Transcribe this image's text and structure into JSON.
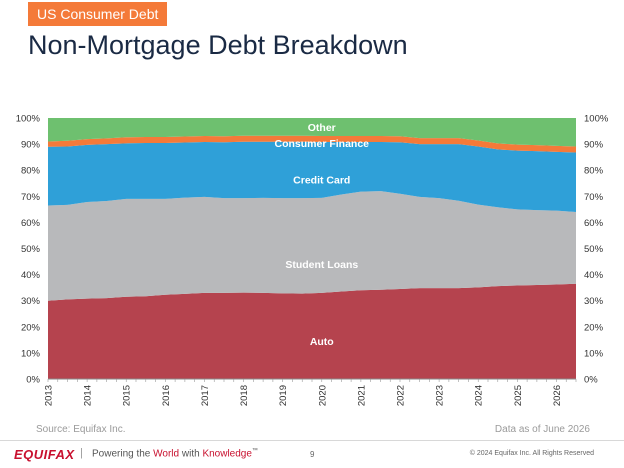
{
  "header": {
    "section_tag": "US Consumer Debt",
    "title": "Non-Mortgage Debt Breakdown"
  },
  "footer": {
    "source": "Source: Equifax Inc.",
    "as_of": "Data as of June 2026",
    "logo": "EQUIFAX",
    "separator": "|",
    "tagline_1": "Powering the ",
    "tagline_2": "World",
    "tagline_3": " with ",
    "tagline_4": "Knowledge",
    "tagline_tm": "™",
    "page_number": "9",
    "copyright": "© 2024 Equifax Inc. All Rights Reserved"
  },
  "chart_data": {
    "type": "area",
    "stacked": true,
    "y_axis_left": [
      "0%",
      "10%",
      "20%",
      "30%",
      "40%",
      "50%",
      "60%",
      "70%",
      "80%",
      "90%",
      "100%"
    ],
    "y_axis_right": [
      "0%",
      "10%",
      "20%",
      "30%",
      "40%",
      "50%",
      "60%",
      "70%",
      "80%",
      "90%",
      "100%"
    ],
    "ylim": [
      0,
      100
    ],
    "x_tick_labels": [
      "2013",
      "2014",
      "2015",
      "2016",
      "2017",
      "2018",
      "2019",
      "2020",
      "2021",
      "2022",
      "2023",
      "2024",
      "2025",
      "2026"
    ],
    "x_range": [
      2013,
      2026.5
    ],
    "x": [
      2013.0,
      2013.5,
      2014.0,
      2014.5,
      2015.0,
      2015.5,
      2016.0,
      2016.5,
      2017.0,
      2017.5,
      2018.0,
      2018.5,
      2019.0,
      2019.5,
      2020.0,
      2020.5,
      2021.0,
      2021.5,
      2022.0,
      2022.5,
      2023.0,
      2023.5,
      2024.0,
      2024.5,
      2025.0,
      2025.5,
      2026.0,
      2026.5
    ],
    "series": [
      {
        "name": "Auto",
        "color": "#b5434e",
        "values": [
          30.0,
          30.5,
          30.8,
          31.0,
          31.5,
          31.7,
          32.3,
          32.6,
          33.0,
          33.0,
          33.1,
          33.0,
          32.8,
          32.7,
          33.0,
          33.5,
          34.0,
          34.2,
          34.5,
          34.8,
          34.8,
          34.8,
          35.1,
          35.6,
          35.8,
          36.0,
          36.2,
          36.5
        ]
      },
      {
        "name": "Student Loans",
        "color": "#b8b9bb",
        "values": [
          36.5,
          36.2,
          37.0,
          37.2,
          37.5,
          37.3,
          36.7,
          36.9,
          36.8,
          36.3,
          36.2,
          36.4,
          36.5,
          36.6,
          36.4,
          37.2,
          37.8,
          37.8,
          36.5,
          35.0,
          34.5,
          33.5,
          31.7,
          30.2,
          29.2,
          28.7,
          28.3,
          27.5
        ]
      },
      {
        "name": "Credit Card",
        "color": "#2fa0d8",
        "values": [
          22.5,
          22.4,
          21.9,
          21.8,
          21.3,
          21.4,
          21.4,
          21.1,
          21.0,
          21.4,
          21.6,
          21.5,
          21.6,
          21.6,
          21.4,
          20.1,
          19.0,
          18.8,
          19.7,
          20.2,
          20.7,
          21.7,
          22.3,
          22.2,
          22.5,
          22.6,
          22.5,
          22.8
        ]
      },
      {
        "name": "Consumer Finance",
        "color": "#f47a39",
        "values": [
          2.0,
          2.2,
          2.2,
          2.2,
          2.3,
          2.3,
          2.3,
          2.3,
          2.3,
          2.3,
          2.3,
          2.3,
          2.3,
          2.3,
          2.3,
          2.3,
          2.3,
          2.3,
          2.3,
          2.3,
          2.3,
          2.3,
          2.3,
          2.3,
          2.3,
          2.3,
          2.3,
          2.3
        ]
      },
      {
        "name": "Other",
        "color": "#6ec06f",
        "values": [
          9.0,
          8.7,
          8.1,
          7.8,
          7.4,
          7.3,
          7.3,
          7.1,
          6.9,
          7.0,
          6.8,
          6.8,
          6.8,
          6.8,
          6.9,
          6.9,
          6.9,
          6.9,
          7.0,
          7.7,
          7.7,
          7.7,
          8.6,
          9.7,
          10.2,
          10.4,
          10.7,
          10.9
        ]
      }
    ],
    "series_labels": [
      {
        "text": "Other",
        "x": 2020.0,
        "y": 96.5
      },
      {
        "text": "Consumer Finance",
        "x": 2020.0,
        "y": 90.5
      },
      {
        "text": "Credit Card",
        "x": 2020.0,
        "y": 76.5
      },
      {
        "text": "Student Loans",
        "x": 2020.0,
        "y": 44.0
      },
      {
        "text": "Auto",
        "x": 2020.0,
        "y": 14.5
      }
    ],
    "label_color": "#ffffff",
    "grid": false
  }
}
